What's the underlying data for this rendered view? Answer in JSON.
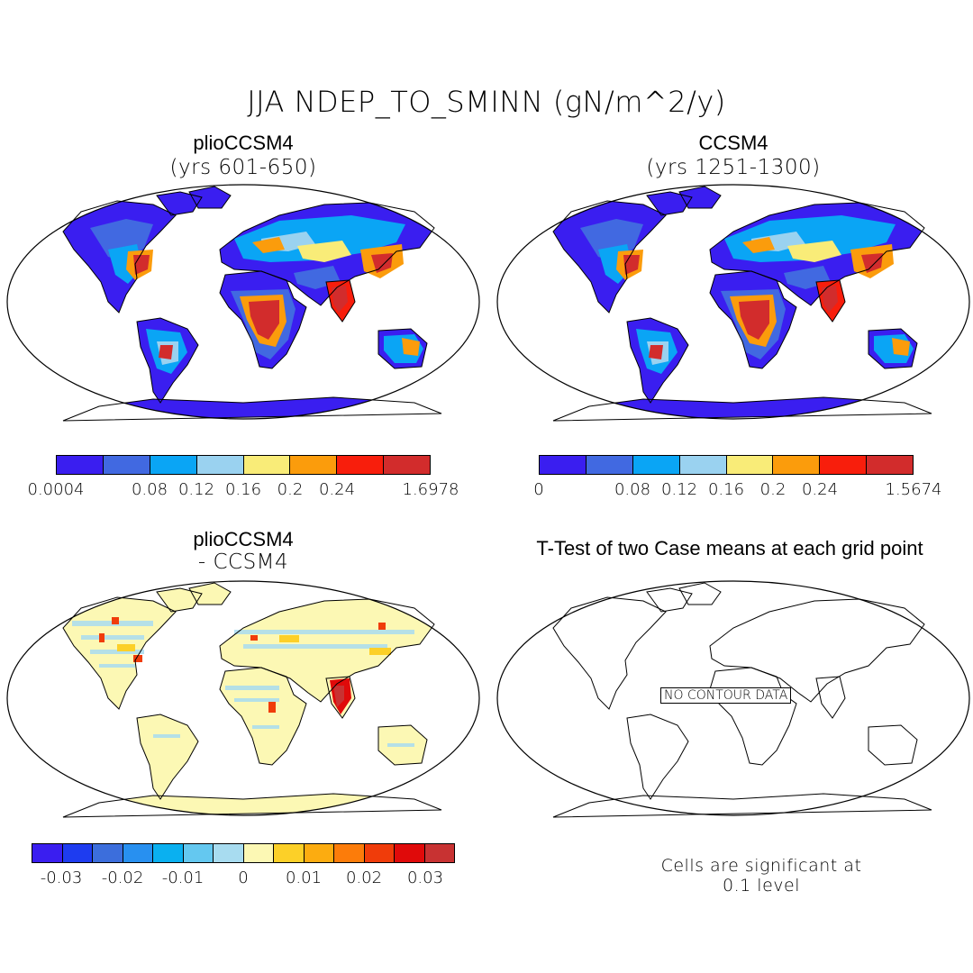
{
  "title": "JJA NDEP_TO_SMINN (gN/m^2/y)",
  "panels": {
    "p1": {
      "title": "plioCCSM4",
      "subtitle": "(yrs 601-650)"
    },
    "p2": {
      "title": "CCSM4",
      "subtitle": "(yrs 1251-1300)"
    },
    "p3": {
      "title": "plioCCSM4",
      "subtitle": "- CCSM4"
    },
    "p4": {
      "title": "T-Test of two Case means at each grid point",
      "overlay": "NO CONTOUR DATA",
      "note": "Cells are significant at 0.1 level"
    }
  },
  "colorbars": {
    "cb1": {
      "colors": [
        "#3a1ef0",
        "#4169e1",
        "#0aa5f5",
        "#9ad2f0",
        "#f9ec78",
        "#fb9c0c",
        "#f81e0c",
        "#d22c2c"
      ],
      "labels": [
        "0.0004",
        "0.08",
        "0.12",
        "0.16",
        "0.2",
        "0.24",
        "1.6978"
      ]
    },
    "cb2": {
      "colors": [
        "#3a1ef0",
        "#4169e1",
        "#0aa5f5",
        "#9ad2f0",
        "#f9ec78",
        "#fb9c0c",
        "#f81e0c",
        "#d22c2c"
      ],
      "labels": [
        "0",
        "0.08",
        "0.12",
        "0.16",
        "0.2",
        "0.24",
        "1.5674"
      ]
    },
    "cb3": {
      "colors": [
        "#3a1ef0",
        "#1e3cf0",
        "#3c6edc",
        "#2890f0",
        "#0ab0f0",
        "#64c8f0",
        "#a8dcf0",
        "#fcf8b4",
        "#fcd028",
        "#fcac10",
        "#fc7c0a",
        "#f03c0a",
        "#e00a0a",
        "#c83232"
      ],
      "labels": [
        "-0.03",
        "-0.02",
        "-0.01",
        "0",
        "0.01",
        "0.02",
        "0.03"
      ]
    }
  },
  "legend_colors": {
    "deep_blue": "#3a1ef0",
    "blue": "#4169e1",
    "cyan": "#0aa5f5",
    "light_blue": "#9ad2f0",
    "yellow": "#f9ec78",
    "orange": "#fb9c0c",
    "red": "#f81e0c",
    "dark_red": "#d22c2c",
    "pale_yellow": "#fcf8b4"
  }
}
